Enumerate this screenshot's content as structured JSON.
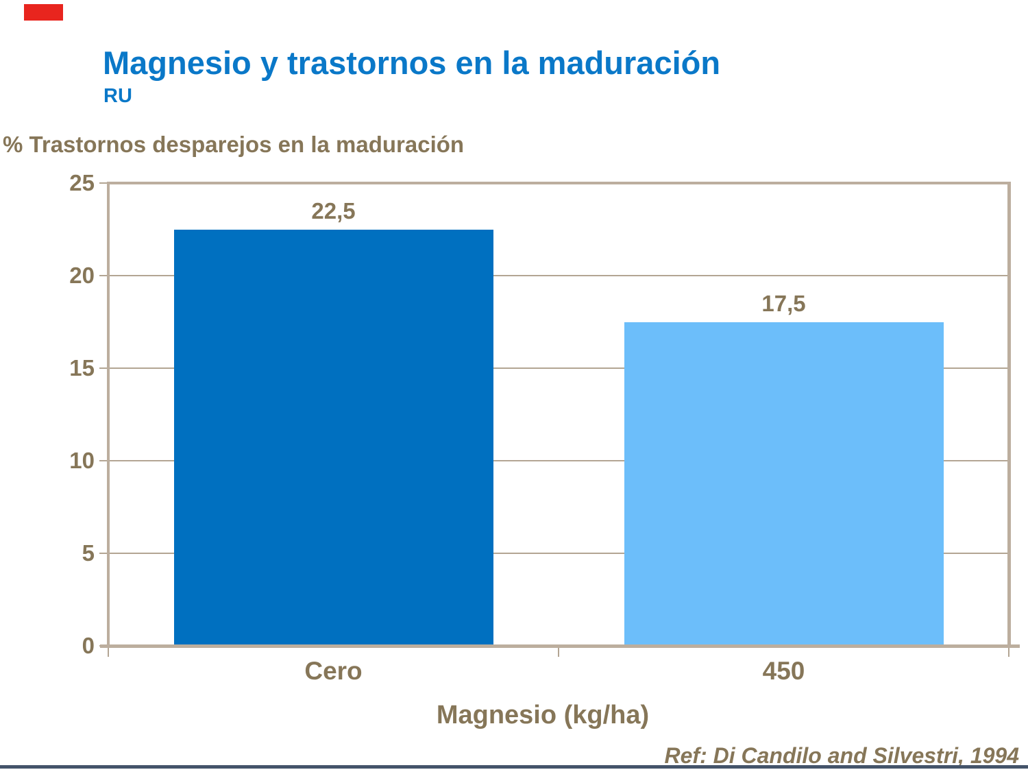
{
  "slide": {
    "title": "Magnesio y trastornos en la maduración",
    "subtitle": "RU",
    "reference": "Ref: Di Candilo and Silvestri, 1994"
  },
  "chart_data": {
    "type": "bar",
    "title": "% Trastornos desparejos en la maduración",
    "xlabel": "Magnesio (kg/ha)",
    "ylabel": "% Trastornos desparejos en la maduración",
    "categories": [
      "Cero",
      "450"
    ],
    "values": [
      22.5,
      17.5
    ],
    "value_labels": [
      "22,5",
      "17,5"
    ],
    "bar_colors": [
      "#0070c0",
      "#6cbefa"
    ],
    "ylim": [
      0,
      25
    ],
    "yticks": [
      0,
      5,
      10,
      15,
      20,
      25
    ],
    "grid": true,
    "legend": false
  },
  "colors": {
    "title_blue": "#0a78c8",
    "text_brown": "#867658",
    "bar_dark_blue": "#0070c0",
    "bar_light_blue": "#6cbefa",
    "axis_frame_tan": "#bcae9e",
    "gridline_tan": "#b3a593",
    "accent_red": "#e8251e",
    "bottom_line": "#44546a"
  }
}
